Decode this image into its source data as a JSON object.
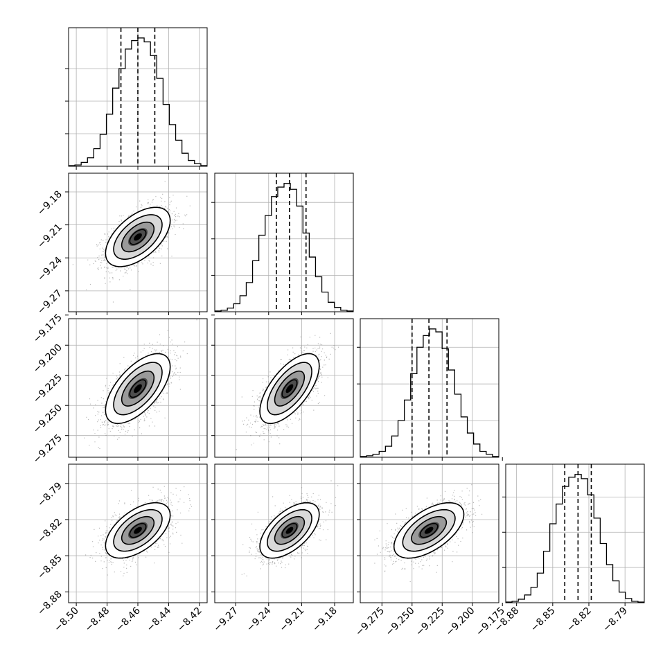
{
  "figure": {
    "type": "corner-plot"
  },
  "chart_data": {
    "type": "corner",
    "n_params": 4,
    "grid": true,
    "params": [
      {
        "index": 0,
        "range": [
          -8.505,
          -8.415
        ],
        "ticks": [
          -8.5,
          -8.48,
          -8.46,
          -8.44,
          -8.42
        ],
        "tick_labels": [
          "−8.50",
          "−8.48",
          "−8.46",
          "−8.44",
          "−8.42"
        ],
        "quantiles": [
          -8.471,
          -8.46,
          -8.449
        ],
        "mean": -8.46,
        "sigma": 0.0105
      },
      {
        "index": 1,
        "range": [
          -9.289,
          -9.163
        ],
        "ticks": [
          -9.27,
          -9.24,
          -9.21,
          -9.18
        ],
        "tick_labels": [
          "−9.27",
          "−9.24",
          "−9.21",
          "−9.18"
        ],
        "quantiles": [
          -9.233,
          -9.221,
          -9.206
        ],
        "mean": -9.221,
        "sigma": 0.0135
      },
      {
        "index": 2,
        "range": [
          -9.293,
          -9.178
        ],
        "ticks": [
          -9.275,
          -9.25,
          -9.225,
          -9.2,
          -9.175
        ],
        "tick_labels": [
          "−9.275",
          "−9.250",
          "−9.225",
          "−9.200",
          "−9.175"
        ],
        "quantiles": [
          -9.25,
          -9.236,
          -9.221
        ],
        "mean": -9.236,
        "sigma": 0.0145
      },
      {
        "index": 3,
        "range": [
          -8.889,
          -8.774
        ],
        "ticks": [
          -8.88,
          -8.85,
          -8.82,
          -8.79
        ],
        "tick_labels": [
          "−8.88",
          "−8.85",
          "−8.82",
          "−8.79"
        ],
        "quantiles": [
          -8.84,
          -8.829,
          -8.818
        ],
        "mean": -8.829,
        "sigma": 0.0115
      }
    ],
    "histograms": [
      [
        1,
        2,
        6,
        13,
        27,
        49,
        80,
        120,
        150,
        180,
        193,
        197,
        191,
        170,
        135,
        95,
        64,
        40,
        20,
        9,
        4,
        1
      ],
      [
        1,
        2,
        5,
        11,
        22,
        40,
        70,
        105,
        132,
        158,
        171,
        176,
        168,
        145,
        108,
        75,
        48,
        27,
        13,
        6,
        2,
        1
      ],
      [
        1,
        2,
        4,
        8,
        15,
        29,
        50,
        78,
        114,
        150,
        166,
        175,
        171,
        148,
        119,
        86,
        55,
        33,
        18,
        8,
        4,
        1
      ],
      [
        1,
        2,
        5,
        11,
        22,
        42,
        73,
        112,
        140,
        165,
        178,
        182,
        176,
        153,
        120,
        84,
        54,
        31,
        15,
        6,
        2,
        1
      ]
    ],
    "correlations": [
      {
        "x": 0,
        "y": 1,
        "rho": 0.55
      },
      {
        "x": 0,
        "y": 2,
        "rho": 0.62
      },
      {
        "x": 1,
        "y": 2,
        "rho": 0.65
      },
      {
        "x": 0,
        "y": 3,
        "rho": 0.55
      },
      {
        "x": 1,
        "y": 3,
        "rho": 0.58
      },
      {
        "x": 2,
        "y": 3,
        "rho": 0.58
      }
    ],
    "contour_levels_sigma": [
      0.5,
      1.0,
      1.5,
      2.0
    ],
    "colors": {
      "line": "#000000",
      "grid": "#b0b0b0",
      "points": "#808080"
    }
  }
}
